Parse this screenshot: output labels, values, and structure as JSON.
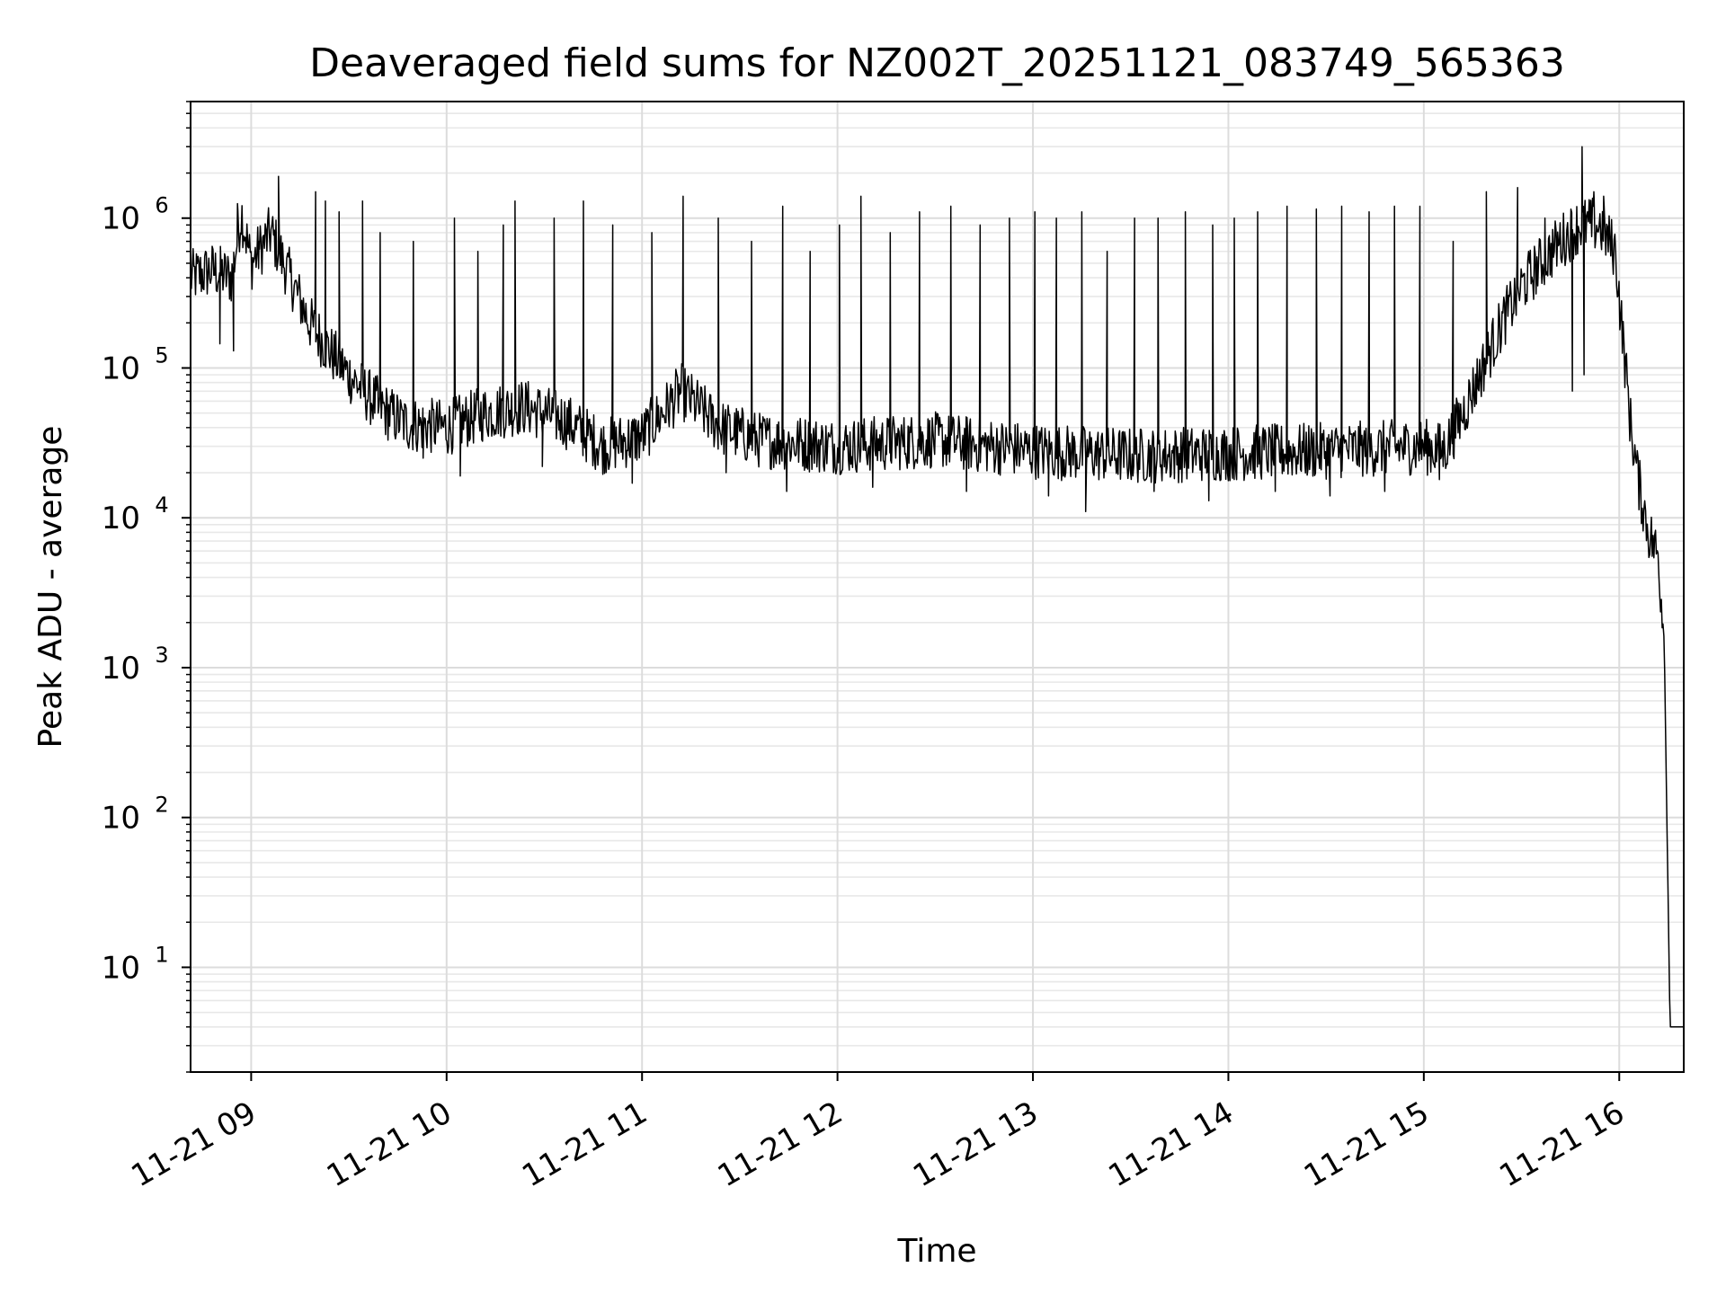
{
  "chart_data": {
    "type": "line",
    "title": "Deaveraged field sums for NZ002T_20251121_083749_565363",
    "xlabel": "Time",
    "ylabel": "Peak ADU - average",
    "yscale": "log",
    "x_unit": "hours",
    "xlim": [
      8.69,
      16.33
    ],
    "ylim": [
      2,
      6000000
    ],
    "grid": true,
    "x_ticks": [
      {
        "value": 9,
        "label": "11-21 09"
      },
      {
        "value": 10,
        "label": "11-21 10"
      },
      {
        "value": 11,
        "label": "11-21 11"
      },
      {
        "value": 12,
        "label": "11-21 12"
      },
      {
        "value": 13,
        "label": "11-21 13"
      },
      {
        "value": 14,
        "label": "11-21 14"
      },
      {
        "value": 15,
        "label": "11-21 15"
      },
      {
        "value": 16,
        "label": "11-21 16"
      }
    ],
    "y_ticks": [
      {
        "value": 10,
        "base": "10",
        "exp": "1"
      },
      {
        "value": 100,
        "base": "10",
        "exp": "2"
      },
      {
        "value": 1000,
        "base": "10",
        "exp": "3"
      },
      {
        "value": 10000,
        "base": "10",
        "exp": "4"
      },
      {
        "value": 100000,
        "base": "10",
        "exp": "5"
      },
      {
        "value": 1000000,
        "base": "10",
        "exp": "6"
      }
    ],
    "series": [
      {
        "name": "Peak ADU - average",
        "color": "#000000",
        "baseline": [
          [
            8.69,
            400000
          ],
          [
            8.8,
            450000
          ],
          [
            8.9,
            400000
          ],
          [
            8.95,
            1100000
          ],
          [
            9.0,
            500000
          ],
          [
            9.1,
            800000
          ],
          [
            9.2,
            400000
          ],
          [
            9.3,
            200000
          ],
          [
            9.4,
            130000
          ],
          [
            9.5,
            90000
          ],
          [
            9.6,
            65000
          ],
          [
            9.7,
            50000
          ],
          [
            9.8,
            42000
          ],
          [
            10.0,
            40000
          ],
          [
            10.2,
            50000
          ],
          [
            10.4,
            55000
          ],
          [
            10.6,
            45000
          ],
          [
            10.8,
            30000
          ],
          [
            11.0,
            35000
          ],
          [
            11.2,
            70000
          ],
          [
            11.4,
            40000
          ],
          [
            11.6,
            33000
          ],
          [
            12.0,
            30000
          ],
          [
            12.5,
            33000
          ],
          [
            13.0,
            28000
          ],
          [
            13.5,
            26000
          ],
          [
            14.0,
            27000
          ],
          [
            14.5,
            28000
          ],
          [
            15.0,
            30000
          ],
          [
            15.1,
            28000
          ],
          [
            15.2,
            50000
          ],
          [
            15.3,
            100000
          ],
          [
            15.4,
            200000
          ],
          [
            15.5,
            350000
          ],
          [
            15.6,
            500000
          ],
          [
            15.7,
            700000
          ],
          [
            15.8,
            900000
          ],
          [
            15.9,
            900000
          ],
          [
            15.98,
            600000
          ],
          [
            16.02,
            150000
          ],
          [
            16.06,
            40000
          ],
          [
            16.1,
            17000
          ],
          [
            16.15,
            8000
          ],
          [
            16.2,
            5500
          ],
          [
            16.23,
            1500
          ],
          [
            16.26,
            4
          ],
          [
            16.33,
            4
          ]
        ],
        "spikes": [
          [
            8.8,
            600000
          ],
          [
            8.93,
            1250000
          ],
          [
            9.04,
            700000
          ],
          [
            9.14,
            1900000
          ],
          [
            9.33,
            1500000
          ],
          [
            9.38,
            1300000
          ],
          [
            9.45,
            1100000
          ],
          [
            9.57,
            1300000
          ],
          [
            9.66,
            800000
          ],
          [
            9.83,
            700000
          ],
          [
            10.04,
            1000000
          ],
          [
            10.16,
            600000
          ],
          [
            10.29,
            900000
          ],
          [
            10.35,
            1300000
          ],
          [
            10.55,
            1000000
          ],
          [
            10.7,
            1300000
          ],
          [
            10.85,
            900000
          ],
          [
            11.05,
            800000
          ],
          [
            11.21,
            1400000
          ],
          [
            11.39,
            1000000
          ],
          [
            11.56,
            700000
          ],
          [
            11.72,
            1200000
          ],
          [
            11.86,
            600000
          ],
          [
            12.01,
            900000
          ],
          [
            12.12,
            1400000
          ],
          [
            12.27,
            800000
          ],
          [
            12.42,
            1100000
          ],
          [
            12.58,
            1200000
          ],
          [
            12.73,
            900000
          ],
          [
            12.88,
            1000000
          ],
          [
            13.01,
            1100000
          ],
          [
            13.12,
            1000000
          ],
          [
            13.25,
            1100000
          ],
          [
            13.38,
            600000
          ],
          [
            13.52,
            1000000
          ],
          [
            13.64,
            1000000
          ],
          [
            13.78,
            1100000
          ],
          [
            13.92,
            900000
          ],
          [
            14.03,
            1000000
          ],
          [
            14.15,
            1100000
          ],
          [
            14.3,
            1200000
          ],
          [
            14.45,
            1150000
          ],
          [
            14.58,
            1200000
          ],
          [
            14.72,
            1100000
          ],
          [
            14.85,
            1200000
          ],
          [
            14.98,
            1200000
          ],
          [
            15.15,
            700000
          ],
          [
            15.32,
            1500000
          ],
          [
            15.48,
            1600000
          ],
          [
            15.62,
            1000000
          ],
          [
            15.81,
            3000000
          ],
          [
            15.87,
            1500000
          ],
          [
            15.92,
            1400000
          ]
        ],
        "dips": [
          [
            8.84,
            145000
          ],
          [
            8.91,
            130000
          ],
          [
            9.65,
            50000
          ],
          [
            9.88,
            25000
          ],
          [
            10.07,
            19000
          ],
          [
            10.49,
            22000
          ],
          [
            10.95,
            17000
          ],
          [
            11.43,
            20000
          ],
          [
            11.74,
            15000
          ],
          [
            12.18,
            16000
          ],
          [
            12.66,
            15000
          ],
          [
            13.08,
            14000
          ],
          [
            13.27,
            11000
          ],
          [
            13.62,
            15000
          ],
          [
            13.9,
            13000
          ],
          [
            14.24,
            15000
          ],
          [
            14.52,
            14000
          ],
          [
            14.8,
            15000
          ],
          [
            15.08,
            18000
          ],
          [
            15.82,
            90000
          ],
          [
            15.76,
            70000
          ]
        ]
      }
    ]
  }
}
